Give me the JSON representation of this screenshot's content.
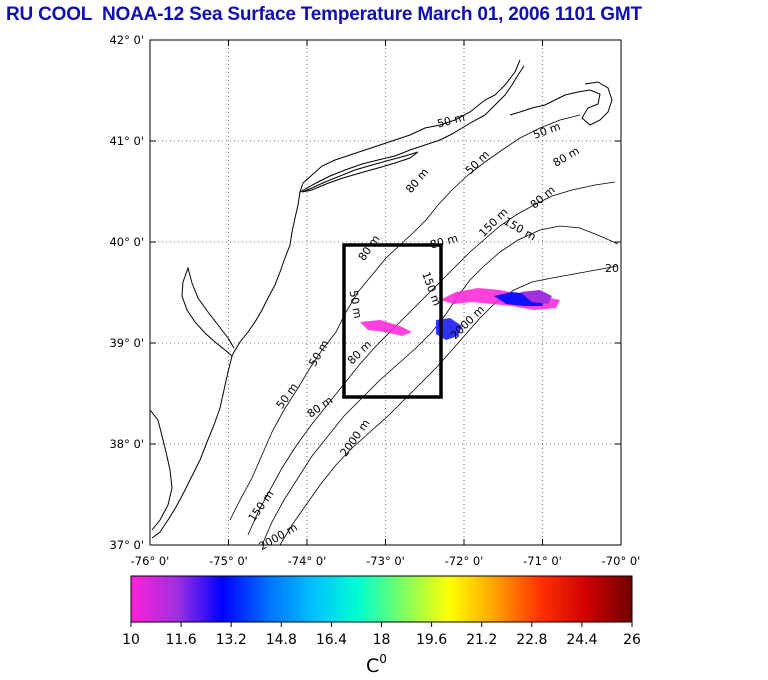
{
  "title": "RU COOL  NOAA-12 Sea Surface Temperature March 01, 2006 1101 GMT",
  "map": {
    "lat_ticks": [
      "42° 0'",
      "41° 0'",
      "40° 0'",
      "39° 0'",
      "38° 0'",
      "37° 0'"
    ],
    "lon_ticks": [
      "-76° 0'",
      "-75° 0'",
      "-74° 0'",
      "-73° 0'",
      "-72° 0'",
      "-71° 0'",
      "-70° 0'"
    ],
    "contour_labels": [
      "50 m",
      "50 m",
      "80 m",
      "50 m",
      "80 m",
      "80 m",
      "80 m",
      "150 m",
      "50 m",
      "80 m",
      "50 m",
      "50 m",
      "80 m",
      "80 m",
      "150 m",
      "2000 m",
      "150 m",
      "2000 m",
      "150 m",
      "2000 m",
      "20"
    ]
  },
  "colorbar": {
    "labels": [
      "10",
      "11.6",
      "13.2",
      "14.8",
      "16.4",
      "18",
      "19.6",
      "21.2",
      "22.8",
      "24.4",
      "26"
    ],
    "unit": "C",
    "unit_sup": "0",
    "colors": [
      "#ff20d8",
      "#a030e0",
      "#0000ff",
      "#0070ff",
      "#00c0ff",
      "#00ffd0",
      "#80ff60",
      "#ffff00",
      "#ffa000",
      "#ff3000",
      "#d00000",
      "#700000"
    ]
  }
}
